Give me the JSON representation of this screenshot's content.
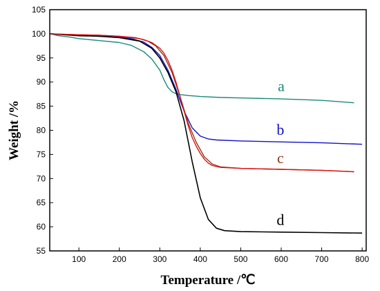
{
  "chart_data": {
    "type": "line",
    "xlabel": "Temperature /℃",
    "ylabel": "Weight /%",
    "xlim": [
      28,
      810
    ],
    "ylim": [
      55,
      105
    ],
    "xticks": [
      100,
      200,
      300,
      400,
      500,
      600,
      700,
      800
    ],
    "yticks": [
      55,
      60,
      65,
      70,
      75,
      80,
      85,
      90,
      95,
      100,
      105
    ],
    "grid": false,
    "legend": "inline labels",
    "series": [
      {
        "name": "a",
        "color": "#1a8a7a",
        "x": [
          30,
          50,
          80,
          100,
          150,
          200,
          230,
          260,
          280,
          300,
          310,
          320,
          330,
          340,
          350,
          370,
          400,
          450,
          500,
          600,
          700,
          780
        ],
        "y": [
          100,
          99.6,
          99.3,
          99.0,
          98.6,
          98.2,
          97.6,
          96.3,
          94.8,
          92.5,
          90.5,
          88.9,
          88.0,
          87.6,
          87.4,
          87.2,
          87.0,
          86.8,
          86.7,
          86.5,
          86.2,
          85.7
        ]
      },
      {
        "name": "b",
        "color": "#1010cc",
        "x": [
          30,
          100,
          150,
          200,
          230,
          260,
          280,
          300,
          320,
          340,
          360,
          380,
          400,
          420,
          440,
          500,
          600,
          700,
          800
        ],
        "y": [
          100,
          99.7,
          99.5,
          99.3,
          99.0,
          98.3,
          97.2,
          95.5,
          92.5,
          88.5,
          84.0,
          80.5,
          78.8,
          78.2,
          78.0,
          77.8,
          77.6,
          77.4,
          77.1
        ]
      },
      {
        "name": "c",
        "color": "#8b3a1a",
        "x": [
          30,
          100,
          150,
          200,
          250,
          270,
          290,
          310,
          330,
          350,
          370,
          390,
          410,
          430,
          450,
          500,
          600,
          700,
          780
        ],
        "y": [
          100,
          99.8,
          99.7,
          99.5,
          99.0,
          98.5,
          97.5,
          95.5,
          92.0,
          87.0,
          81.5,
          77.5,
          74.5,
          73.0,
          72.4,
          72.1,
          71.9,
          71.7,
          71.4
        ]
      },
      {
        "name": "d",
        "color": "#000000",
        "x": [
          30,
          100,
          150,
          200,
          250,
          280,
          300,
          320,
          340,
          360,
          380,
          400,
          420,
          440,
          460,
          500,
          600,
          700,
          800
        ],
        "y": [
          100,
          99.6,
          99.5,
          99.2,
          98.5,
          97.0,
          95.0,
          92.0,
          88.0,
          82.0,
          73.5,
          66.0,
          61.5,
          59.7,
          59.2,
          59.0,
          58.9,
          58.8,
          58.7
        ]
      },
      {
        "name": "c-red",
        "color": "#e01010",
        "x": [
          30,
          100,
          150,
          200,
          240,
          260,
          280,
          300,
          310,
          320,
          330,
          340,
          350,
          360,
          370,
          380,
          390,
          400,
          410,
          420,
          430,
          450,
          500,
          600,
          700,
          780
        ],
        "y": [
          100,
          99.8,
          99.7,
          99.5,
          99.2,
          98.8,
          98.2,
          97.0,
          96.0,
          94.5,
          92.5,
          90.0,
          87.0,
          84.0,
          81.0,
          78.5,
          76.7,
          75.2,
          74.0,
          73.2,
          72.7,
          72.3,
          72.1,
          71.9,
          71.7,
          71.4
        ],
        "labelless": true
      }
    ],
    "annotations": [
      {
        "text": "a",
        "x": 600,
        "y": 88.1,
        "color": "#1a8a7a"
      },
      {
        "text": "b",
        "x": 598,
        "y": 79.1,
        "color": "#1010cc"
      },
      {
        "text": "c",
        "x": 598,
        "y": 73.2,
        "color": "#8b3a1a"
      },
      {
        "text": "d",
        "x": 598,
        "y": 60.4,
        "color": "#000000"
      }
    ]
  }
}
